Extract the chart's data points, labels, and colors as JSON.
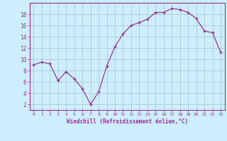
{
  "x": [
    0,
    1,
    2,
    3,
    4,
    5,
    6,
    7,
    8,
    9,
    10,
    11,
    12,
    13,
    14,
    15,
    16,
    17,
    18,
    19,
    20,
    21,
    22,
    23
  ],
  "y": [
    9.0,
    9.5,
    9.2,
    6.2,
    7.8,
    6.5,
    4.8,
    2.0,
    4.2,
    8.8,
    12.2,
    14.5,
    16.0,
    16.5,
    17.1,
    18.3,
    18.3,
    19.0,
    18.8,
    18.3,
    17.2,
    15.0,
    14.7,
    11.2
  ],
  "line_color": "#993399",
  "marker": "+",
  "bg_color": "#cceeff",
  "grid_color": "#aacccc",
  "xlabel": "Windchill (Refroidissement éolien,°C)",
  "ylabel_ticks": [
    2,
    4,
    6,
    8,
    10,
    12,
    14,
    16,
    18
  ],
  "xlim": [
    -0.5,
    23.5
  ],
  "ylim": [
    1,
    20
  ],
  "label_color": "#993399",
  "font_family": "monospace"
}
